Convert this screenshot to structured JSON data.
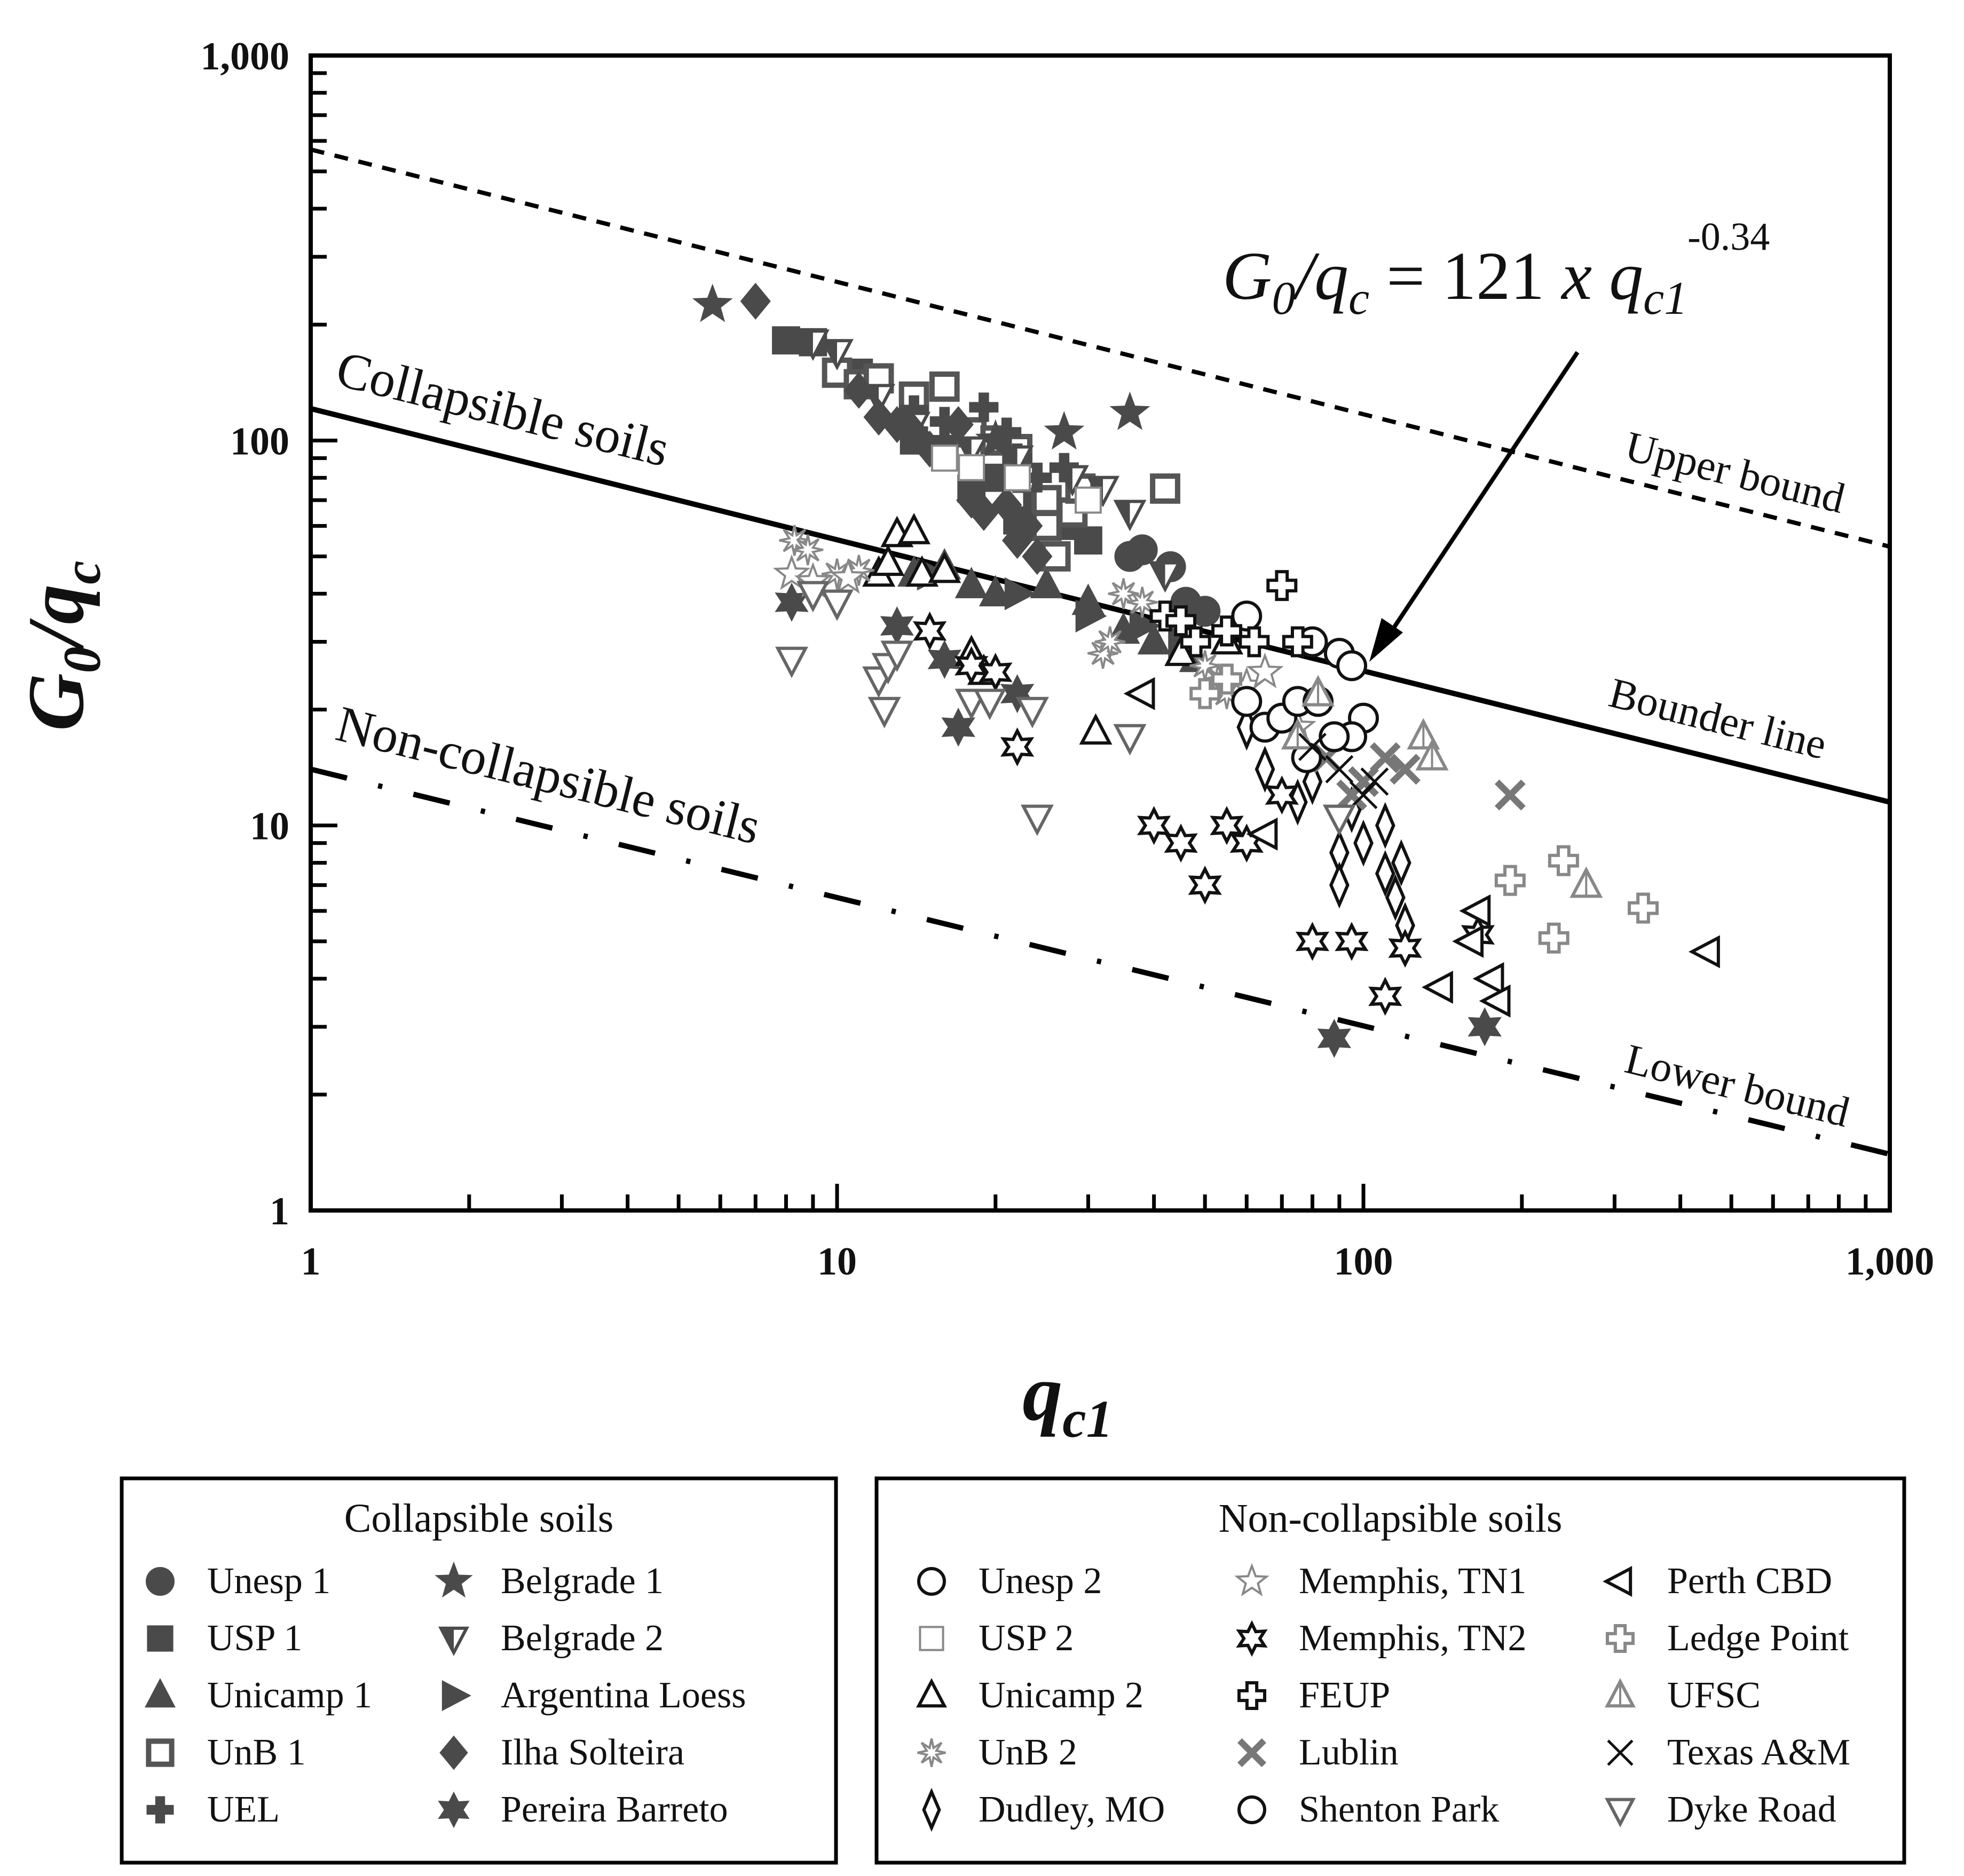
{
  "chart_data": {
    "type": "scatter",
    "x_scale": "log",
    "y_scale": "log",
    "xlim": [
      1,
      1000
    ],
    "ylim": [
      1,
      1000
    ],
    "xlabel": "q",
    "xlabel_sub": "c1",
    "ylabel_main": "G",
    "ylabel_sub0": "0",
    "ylabel_slash": "/q",
    "ylabel_subc": "c",
    "x_ticks": [
      {
        "value": 1,
        "label": "1"
      },
      {
        "value": 10,
        "label": "10"
      },
      {
        "value": 100,
        "label": "100"
      },
      {
        "value": 1000,
        "label": "1,000"
      }
    ],
    "y_ticks": [
      {
        "value": 1,
        "label": "1"
      },
      {
        "value": 10,
        "label": "10"
      },
      {
        "value": 100,
        "label": "100"
      },
      {
        "value": 1000,
        "label": "1,000"
      }
    ],
    "grid": false,
    "lines": [
      {
        "name": "Upper bound",
        "style": "dashed",
        "points": [
          [
            1,
            570
          ],
          [
            1000,
            53
          ]
        ]
      },
      {
        "name": "Bounder line",
        "style": "solid",
        "points": [
          [
            1,
            121
          ],
          [
            1000,
            11.5
          ]
        ]
      },
      {
        "name": "Lower bound",
        "style": "dash-dot",
        "points": [
          [
            1,
            14
          ],
          [
            1000,
            1.4
          ]
        ]
      }
    ],
    "annotations": {
      "equation": {
        "G": "G",
        "sub0": "0",
        "slash": "/q",
        "subc": "c",
        "eq": " = 121 ",
        "x": "x",
        "q": " q",
        "subc1": "c1",
        "exp": "-0.34"
      },
      "collapsible_region": "Collapsible soils",
      "noncollapsible_region": "Non-collapsible soils",
      "upper_bound": "Upper bound",
      "bounder_line": "Bounder line",
      "lower_bound": "Lower bound"
    },
    "legend": {
      "collapsible_title": "Collapsible soils",
      "noncollapsible_title": "Non-collapsible soils"
    },
    "series": [
      {
        "name": "Unesp 1",
        "group": "collapsible",
        "marker": "circle",
        "fill": "#4a4a4a",
        "stroke": "#4a4a4a",
        "points": [
          [
            36,
            50
          ],
          [
            38,
            52
          ],
          [
            43,
            47
          ],
          [
            46,
            38
          ],
          [
            50,
            36
          ]
        ]
      },
      {
        "name": "USP 1",
        "group": "collapsible",
        "marker": "square",
        "fill": "#4a4a4a",
        "stroke": "#4a4a4a",
        "points": [
          [
            8,
            182
          ],
          [
            9,
            180
          ],
          [
            11,
            150
          ],
          [
            14,
            100
          ],
          [
            16,
            95
          ],
          [
            18,
            75
          ],
          [
            20,
            80
          ],
          [
            22,
            62
          ],
          [
            24,
            70
          ],
          [
            26,
            65
          ],
          [
            28,
            60
          ],
          [
            30,
            55
          ]
        ]
      },
      {
        "name": "Unicamp 1",
        "group": "collapsible",
        "marker": "triangle",
        "fill": "#4a4a4a",
        "stroke": "#4a4a4a",
        "points": [
          [
            14,
            45
          ],
          [
            16,
            47
          ],
          [
            18,
            42
          ],
          [
            20,
            40
          ],
          [
            25,
            42
          ],
          [
            30,
            38
          ],
          [
            35,
            32
          ],
          [
            40,
            30
          ],
          [
            48,
            27
          ]
        ]
      },
      {
        "name": "UnB 1",
        "group": "collapsible",
        "marker": "square-open",
        "fill": "#ffffff",
        "stroke": "#555555",
        "points": [
          [
            10,
            150
          ],
          [
            11,
            140
          ],
          [
            12,
            145
          ],
          [
            14,
            130
          ],
          [
            16,
            138
          ],
          [
            18,
            105
          ],
          [
            20,
            100
          ],
          [
            22,
            95
          ],
          [
            23,
            80
          ],
          [
            25,
            60
          ],
          [
            25,
            70
          ],
          [
            26,
            50
          ],
          [
            28,
            65
          ],
          [
            29,
            75
          ],
          [
            42,
            75
          ]
        ]
      },
      {
        "name": "UEL",
        "group": "collapsible",
        "marker": "plus",
        "fill": "#4a4a4a",
        "stroke": "#4a4a4a",
        "points": [
          [
            14,
            120
          ],
          [
            16,
            112
          ],
          [
            19,
            122
          ],
          [
            21,
            105
          ],
          [
            22,
            90
          ],
          [
            24,
            80
          ],
          [
            27,
            85
          ]
        ]
      },
      {
        "name": "Belgrade 1",
        "group": "collapsible",
        "marker": "star5",
        "fill": "#4a4a4a",
        "stroke": "#4a4a4a",
        "points": [
          [
            5.8,
            225
          ],
          [
            20,
            100
          ],
          [
            27,
            105
          ],
          [
            36,
            118
          ]
        ]
      },
      {
        "name": "Belgrade 2",
        "group": "collapsible",
        "marker": "tri-down-split",
        "fill": "#4a4a4a",
        "stroke": "#4a4a4a",
        "points": [
          [
            9,
            180
          ],
          [
            10,
            170
          ],
          [
            12,
            130
          ],
          [
            14,
            110
          ],
          [
            18,
            95
          ],
          [
            22,
            90
          ],
          [
            28,
            80
          ],
          [
            32,
            75
          ],
          [
            36,
            65
          ],
          [
            42,
            45
          ]
        ]
      },
      {
        "name": "Argentina Loess",
        "group": "collapsible",
        "marker": "tri-right",
        "fill": "#4a4a4a",
        "stroke": "#4a4a4a",
        "points": [
          [
            15,
            45
          ],
          [
            22,
            40
          ],
          [
            30,
            35
          ],
          [
            38,
            33
          ],
          [
            45,
            30
          ]
        ]
      },
      {
        "name": "Ilha Solteira",
        "group": "collapsible",
        "marker": "diamond",
        "fill": "#4a4a4a",
        "stroke": "#4a4a4a",
        "points": [
          [
            7,
            230
          ],
          [
            11,
            135
          ],
          [
            12,
            115
          ],
          [
            13,
            110
          ],
          [
            14,
            105
          ],
          [
            15,
            95
          ],
          [
            17,
            110
          ],
          [
            18,
            70
          ],
          [
            19,
            65
          ],
          [
            21,
            68
          ],
          [
            22,
            55
          ],
          [
            23,
            60
          ],
          [
            24,
            50
          ]
        ]
      },
      {
        "name": "Pereira Barreto",
        "group": "collapsible",
        "marker": "star6",
        "fill": "#4a4a4a",
        "stroke": "#4a4a4a",
        "points": [
          [
            8.2,
            38
          ],
          [
            13,
            33
          ],
          [
            16,
            27
          ],
          [
            17,
            18
          ],
          [
            22,
            22
          ],
          [
            88,
            2.8
          ],
          [
            170,
            3.0
          ]
        ]
      },
      {
        "name": "Unesp 2",
        "group": "noncollapsible",
        "marker": "circle-open",
        "fill": "#ffffff",
        "stroke": "#111111",
        "points": [
          [
            60,
            35
          ],
          [
            80,
            30
          ],
          [
            90,
            28
          ],
          [
            95,
            26
          ],
          [
            100,
            19
          ],
          [
            95,
            17
          ]
        ]
      },
      {
        "name": "USP 2",
        "group": "noncollapsible",
        "marker": "square-open-thin",
        "fill": "#ffffff",
        "stroke": "#888888",
        "points": [
          [
            16,
            90
          ],
          [
            18,
            85
          ],
          [
            22,
            80
          ],
          [
            30,
            70
          ]
        ]
      },
      {
        "name": "Unicamp 2",
        "group": "noncollapsible",
        "marker": "triangle-open",
        "fill": "#ffffff",
        "stroke": "#111111",
        "points": [
          [
            12,
            45
          ],
          [
            12.5,
            48
          ],
          [
            13,
            57
          ],
          [
            14,
            58
          ],
          [
            14.5,
            45
          ],
          [
            16,
            46
          ],
          [
            18,
            28
          ],
          [
            19,
            25
          ],
          [
            31,
            17.5
          ],
          [
            45,
            28
          ],
          [
            55,
            30
          ]
        ]
      },
      {
        "name": "UnB 2",
        "group": "noncollapsible",
        "marker": "asterisk",
        "fill": "#ffffff",
        "stroke": "#888888",
        "points": [
          [
            8.3,
            55
          ],
          [
            8.8,
            52
          ],
          [
            10,
            45
          ],
          [
            11,
            46
          ],
          [
            32,
            28
          ],
          [
            33,
            30
          ],
          [
            35,
            40
          ],
          [
            38,
            38
          ],
          [
            50,
            26
          ],
          [
            53,
            24
          ],
          [
            55,
            22
          ]
        ]
      },
      {
        "name": "Dudley, MO",
        "group": "noncollapsible",
        "marker": "diamond-open",
        "fill": "#ffffff",
        "stroke": "#111111",
        "points": [
          [
            60,
            18
          ],
          [
            65,
            14
          ],
          [
            75,
            11.5
          ],
          [
            80,
            13
          ],
          [
            90,
            8.5
          ],
          [
            90,
            7
          ],
          [
            95,
            11
          ],
          [
            100,
            9
          ],
          [
            110,
            10
          ],
          [
            110,
            7.5
          ],
          [
            115,
            6.5
          ],
          [
            118,
            8
          ],
          [
            120,
            5.5
          ]
        ]
      },
      {
        "name": "Memphis, TN1",
        "group": "noncollapsible",
        "marker": "star5-open",
        "fill": "#ffffff",
        "stroke": "#888888",
        "points": [
          [
            8.2,
            45
          ],
          [
            9,
            43
          ],
          [
            10.5,
            44
          ],
          [
            60,
            23
          ],
          [
            65,
            25
          ],
          [
            75,
            18
          ]
        ]
      },
      {
        "name": "Memphis, TN2",
        "group": "noncollapsible",
        "marker": "star6-open",
        "fill": "#ffffff",
        "stroke": "#111111",
        "points": [
          [
            15,
            32
          ],
          [
            18,
            26
          ],
          [
            20,
            25
          ],
          [
            22,
            16
          ],
          [
            40,
            10
          ],
          [
            45,
            9
          ],
          [
            50,
            7
          ],
          [
            55,
            10
          ],
          [
            60,
            9
          ],
          [
            70,
            12
          ],
          [
            80,
            5
          ],
          [
            95,
            5
          ],
          [
            110,
            3.6
          ],
          [
            120,
            4.8
          ],
          [
            165,
            5.2
          ]
        ]
      },
      {
        "name": "FEUP",
        "group": "noncollapsible",
        "marker": "plus-open",
        "fill": "#ffffff",
        "stroke": "#111111",
        "points": [
          [
            42,
            35
          ],
          [
            45,
            34
          ],
          [
            48,
            30
          ],
          [
            55,
            32
          ],
          [
            62,
            30
          ],
          [
            70,
            42
          ],
          [
            75,
            30
          ]
        ]
      },
      {
        "name": "Lublin",
        "group": "noncollapsible",
        "marker": "x-open",
        "fill": "#ffffff",
        "stroke": "#777777",
        "points": [
          [
            85,
            15
          ],
          [
            95,
            12
          ],
          [
            100,
            13
          ],
          [
            110,
            15
          ],
          [
            120,
            14
          ],
          [
            190,
            12
          ]
        ]
      },
      {
        "name": "Shenton Park",
        "group": "noncollapsible",
        "marker": "circle-open",
        "fill": "#ffffff",
        "stroke": "#111111",
        "points": [
          [
            60,
            21
          ],
          [
            65,
            18
          ],
          [
            70,
            19
          ],
          [
            75,
            21
          ],
          [
            78,
            15
          ],
          [
            82,
            21
          ],
          [
            88,
            17
          ]
        ]
      },
      {
        "name": "Perth CBD",
        "group": "noncollapsible",
        "marker": "tri-left-open",
        "fill": "#ffffff",
        "stroke": "#111111",
        "points": [
          [
            38,
            22
          ],
          [
            65,
            9.5
          ],
          [
            140,
            3.8
          ],
          [
            160,
            5
          ],
          [
            165,
            6
          ],
          [
            175,
            4
          ],
          [
            180,
            3.5
          ],
          [
            450,
            4.7
          ]
        ]
      },
      {
        "name": "Ledge Point",
        "group": "noncollapsible",
        "marker": "plus-open",
        "fill": "#ffffff",
        "stroke": "#888888",
        "points": [
          [
            50,
            22
          ],
          [
            55,
            24
          ],
          [
            190,
            7.2
          ],
          [
            230,
            5.1
          ],
          [
            240,
            8.1
          ],
          [
            340,
            6.1
          ]
        ]
      },
      {
        "name": "UFSC",
        "group": "noncollapsible",
        "marker": "triangle-split-open",
        "fill": "#ffffff",
        "stroke": "#888888",
        "points": [
          [
            75,
            17
          ],
          [
            82,
            22
          ],
          [
            130,
            17
          ],
          [
            135,
            15
          ],
          [
            265,
            7
          ]
        ]
      },
      {
        "name": "Texas A&M",
        "group": "noncollapsible",
        "marker": "x-thin",
        "fill": "none",
        "stroke": "#111111",
        "points": [
          [
            80,
            16
          ],
          [
            90,
            14
          ],
          [
            100,
            12
          ],
          [
            105,
            13
          ]
        ]
      },
      {
        "name": "Dyke Road",
        "group": "noncollapsible",
        "marker": "tri-down-open",
        "fill": "#ffffff",
        "stroke": "#666666",
        "points": [
          [
            8.2,
            27
          ],
          [
            9,
            40
          ],
          [
            10,
            38
          ],
          [
            12,
            24
          ],
          [
            12.3,
            20
          ],
          [
            12.5,
            26
          ],
          [
            13,
            28
          ],
          [
            18,
            21
          ],
          [
            19.5,
            21
          ],
          [
            23.5,
            20
          ],
          [
            24,
            10.5
          ],
          [
            36,
            17
          ],
          [
            90,
            10.5
          ]
        ]
      }
    ]
  }
}
